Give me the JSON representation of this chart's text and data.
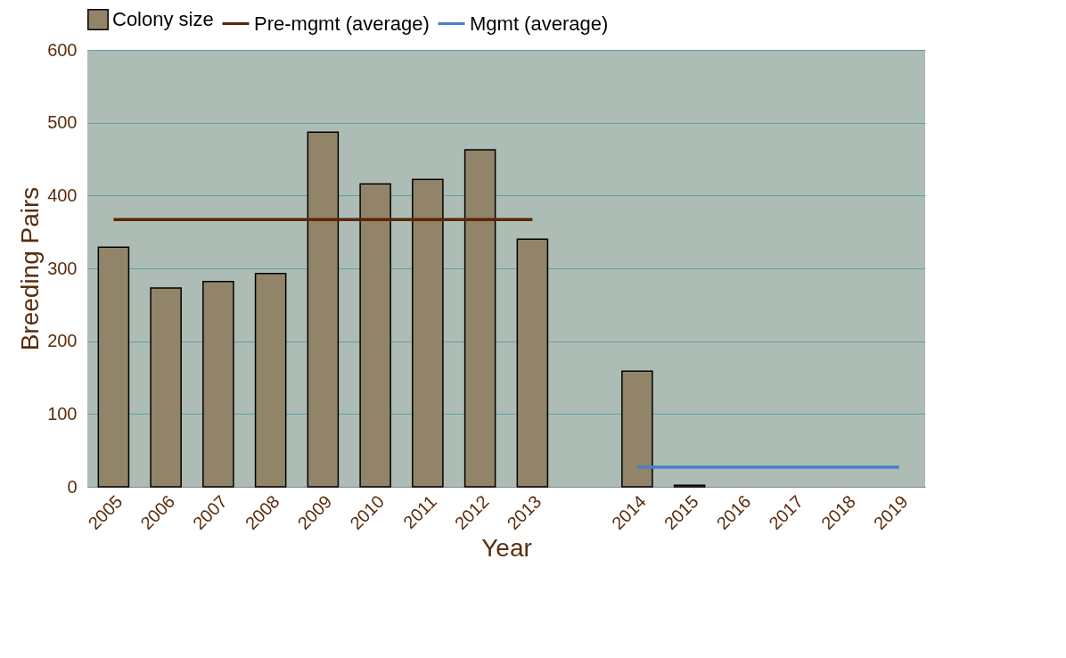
{
  "chart_data": {
    "type": "bar",
    "xlabel": "Year",
    "ylabel": "Breeding Pairs",
    "categories": [
      "2005",
      "2006",
      "2007",
      "2008",
      "2009",
      "2010",
      "2011",
      "2012",
      "2013",
      null,
      "2014",
      "2015",
      "2016",
      "2017",
      "2018",
      "2019"
    ],
    "series": [
      {
        "name": "Colony size",
        "color": "#918469",
        "values": [
          329,
          273,
          282,
          293,
          487,
          416,
          422,
          463,
          340,
          null,
          159,
          2,
          null,
          null,
          null,
          null
        ]
      },
      {
        "name": "Pre-mgmt (average)",
        "type": "line",
        "color": "#5c2606",
        "values": [
          367,
          367,
          367,
          367,
          367,
          367,
          367,
          367,
          367,
          null,
          null,
          null,
          null,
          null,
          null,
          null
        ]
      },
      {
        "name": "Mgmt (average)",
        "type": "line",
        "color": "#4a7ecb",
        "values": [
          null,
          null,
          null,
          null,
          null,
          null,
          null,
          null,
          null,
          null,
          27,
          27,
          27,
          27,
          27,
          27
        ]
      }
    ],
    "ylim": [
      0,
      600
    ],
    "yticks": [
      0,
      100,
      200,
      300,
      400,
      500,
      600
    ],
    "grid": "y",
    "legend": "top"
  }
}
